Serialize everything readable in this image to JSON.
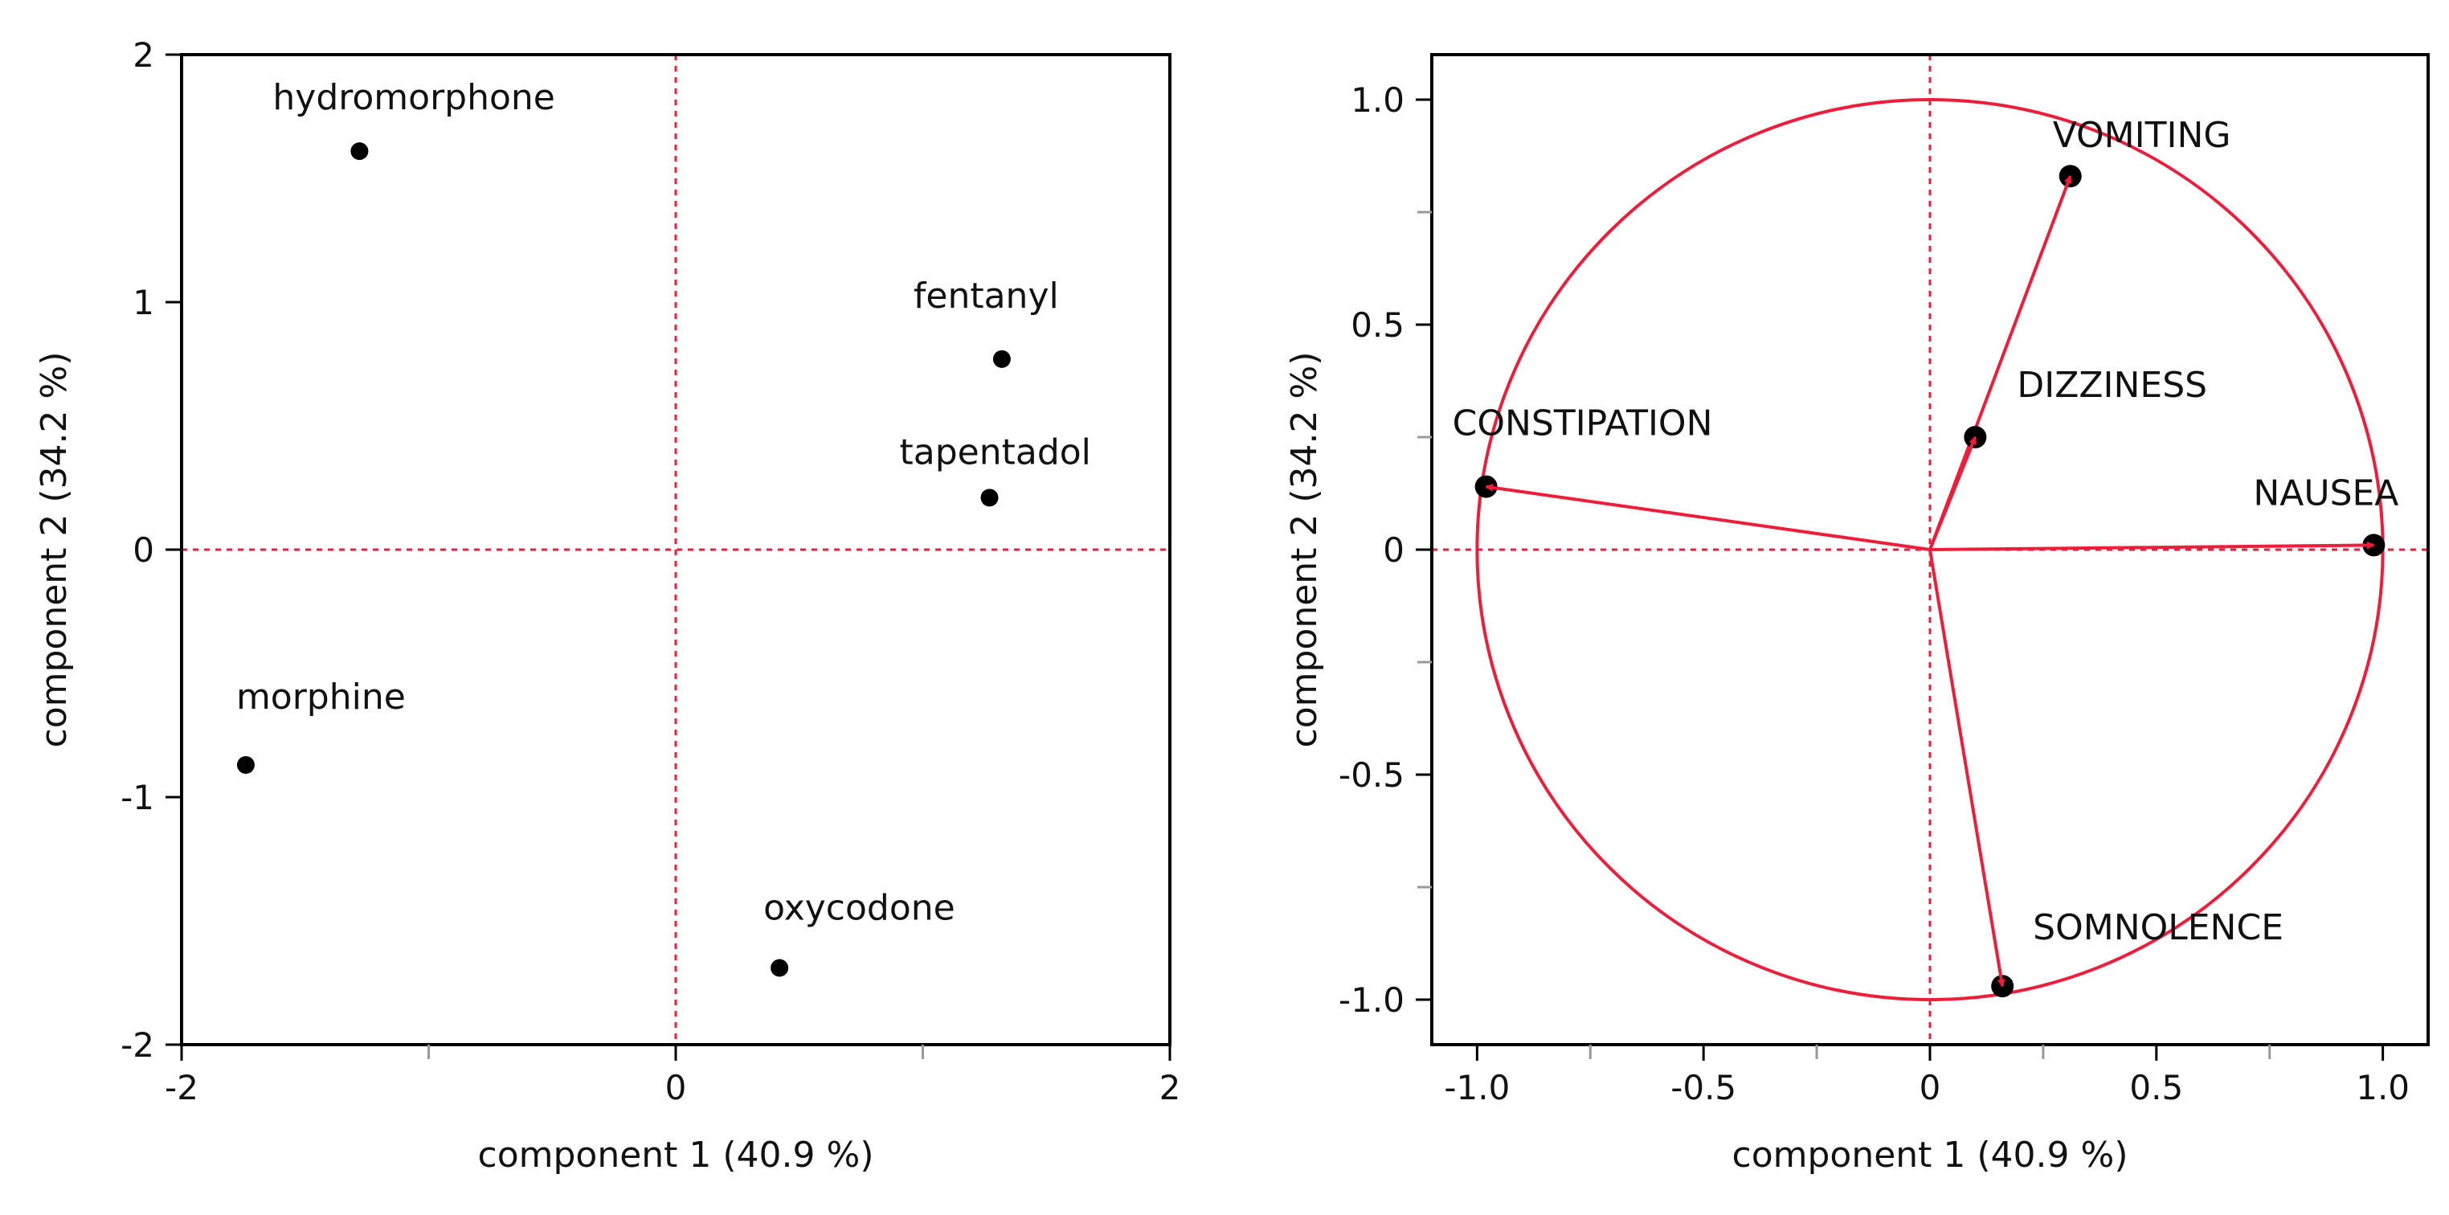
{
  "colors": {
    "accent": "#ee1d3a",
    "ink": "#000000",
    "tick": "#999999"
  },
  "chart_data": [
    {
      "type": "scatter",
      "title": "",
      "xlabel": "component 1  (40.9 %)",
      "ylabel": "component 2  (34.2 %)",
      "xlim": [
        -2,
        2
      ],
      "ylim": [
        -2,
        2
      ],
      "xticks": [
        {
          "value": -2,
          "label": "-2"
        },
        {
          "value": 0,
          "label": "0"
        },
        {
          "value": 2,
          "label": "2"
        }
      ],
      "yticks": [
        {
          "value": 2,
          "label": "2"
        },
        {
          "value": 1,
          "label": "1"
        },
        {
          "value": 0,
          "label": "0"
        },
        {
          "value": -1,
          "label": "-1"
        },
        {
          "value": -2,
          "label": "-2"
        }
      ],
      "minor_xticks": [
        -1,
        1
      ],
      "minor_yticks": [],
      "reference_lines": {
        "x": 0,
        "y": 0,
        "style": "dotted"
      },
      "points": [
        {
          "label": "hydromorphone",
          "x": -1.28,
          "y": 1.61
        },
        {
          "label": "fentanyl",
          "x": 1.32,
          "y": 0.77
        },
        {
          "label": "tapentadol",
          "x": 1.27,
          "y": 0.21
        },
        {
          "label": "morphine",
          "x": -1.74,
          "y": -0.87
        },
        {
          "label": "oxycodone",
          "x": 0.42,
          "y": -1.69
        }
      ]
    },
    {
      "type": "scatter",
      "subtype": "loading-plot",
      "title": "",
      "xlabel": "component 1  (40.9 %)",
      "ylabel": "component 2  (34.2 %)",
      "xlim": [
        -1.1,
        1.1
      ],
      "ylim": [
        -1.1,
        1.1
      ],
      "xticks": [
        {
          "value": -1.0,
          "label": "-1.0"
        },
        {
          "value": -0.5,
          "label": "-0.5"
        },
        {
          "value": 0,
          "label": "0"
        },
        {
          "value": 0.5,
          "label": "0.5"
        },
        {
          "value": 1.0,
          "label": "1.0"
        }
      ],
      "yticks": [
        {
          "value": 1.0,
          "label": "1.0"
        },
        {
          "value": 0.5,
          "label": "0.5"
        },
        {
          "value": 0,
          "label": "0"
        },
        {
          "value": -0.5,
          "label": "-0.5"
        },
        {
          "value": -1.0,
          "label": "-1.0"
        }
      ],
      "minor_xticks": [
        -0.75,
        -0.25,
        0.25,
        0.75
      ],
      "minor_yticks": [
        0.75,
        0.25,
        -0.25,
        -0.75
      ],
      "reference_lines": {
        "x": 0,
        "y": 0,
        "style": "dotted"
      },
      "unit_circle": true,
      "vectors": [
        {
          "label": "VOMITING",
          "x": 0.31,
          "y": 0.83
        },
        {
          "label": "DIZZINESS",
          "x": 0.1,
          "y": 0.25
        },
        {
          "label": "CONSTIPATION",
          "x": -0.98,
          "y": 0.14
        },
        {
          "label": "NAUSEA",
          "x": 0.98,
          "y": 0.01
        },
        {
          "label": "SOMNOLENCE",
          "x": 0.16,
          "y": -0.97
        }
      ]
    }
  ]
}
